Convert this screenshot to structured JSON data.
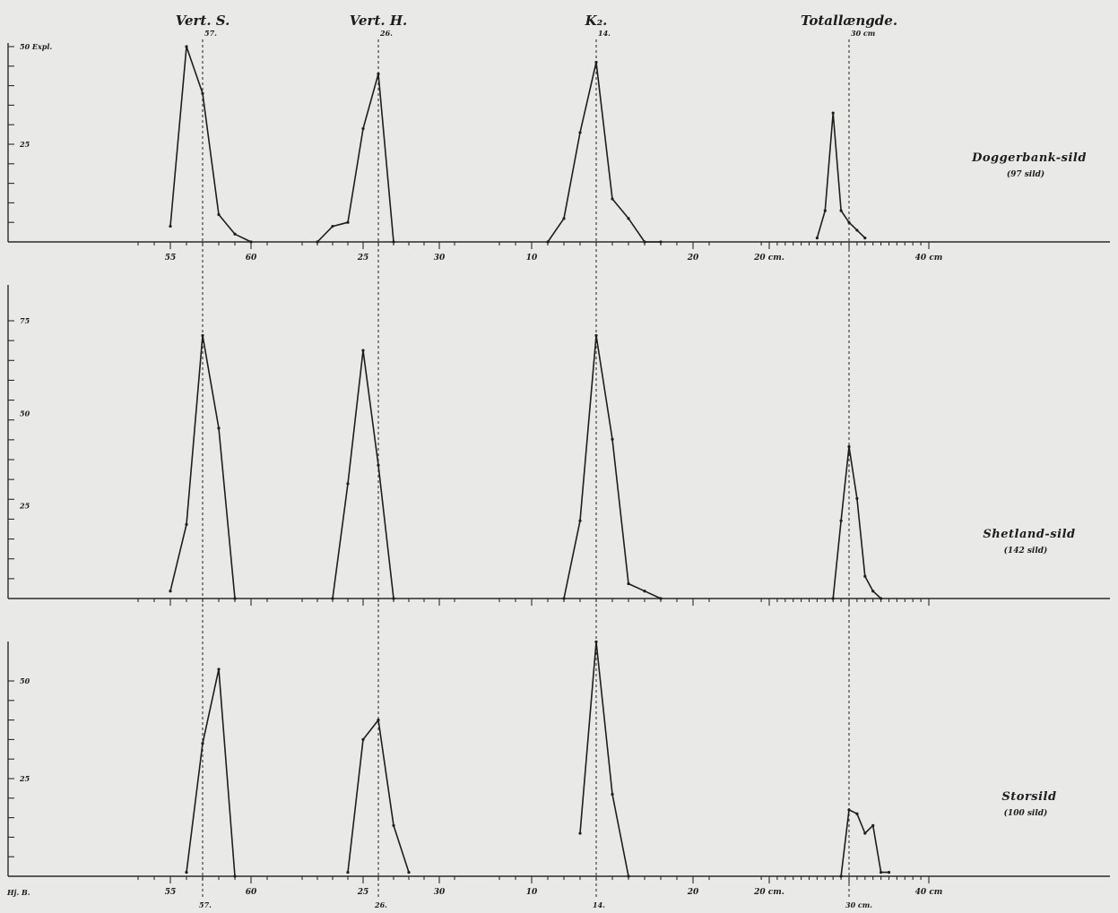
{
  "figure": {
    "headers": [
      {
        "id": "vert-s",
        "label": "Vert. S.",
        "mean_label": "57.",
        "bottom_mean_label": "57."
      },
      {
        "id": "vert-h",
        "label": "Vert. H.",
        "mean_label": "26.",
        "bottom_mean_label": "26."
      },
      {
        "id": "k2",
        "label": "K₂.",
        "mean_label": "14.",
        "bottom_mean_label": "14."
      },
      {
        "id": "total",
        "label": "Totallængde.",
        "mean_label": "30 cm",
        "bottom_mean_label": "30 cm."
      }
    ],
    "panels": [
      {
        "id": "doggerbank",
        "name": "Doggerbank-sild",
        "count_label": "(97 sild)",
        "y_top_label": "50 Expl.",
        "y_labels": [
          "25"
        ]
      },
      {
        "id": "shetland",
        "name": "Shetland-sild",
        "count_label": "(142 sild)",
        "y_top_label": "75",
        "y_labels": [
          "50",
          "25"
        ]
      },
      {
        "id": "storsild",
        "name": "Storsild",
        "count_label": "(100 sild)",
        "y_top_label": "50",
        "y_labels": [
          "25"
        ]
      }
    ],
    "signature": "Hj. B."
  },
  "chart_data": {
    "type": "line",
    "sections": [
      {
        "id": "vert-s",
        "title": "Vert. S.",
        "tick_labels": [
          "55",
          "60"
        ],
        "mean": 57
      },
      {
        "id": "vert-h",
        "title": "Vert. H.",
        "tick_labels": [
          "25",
          "30"
        ],
        "mean": 26
      },
      {
        "id": "k2",
        "title": "K₂.",
        "tick_labels": [
          "10",
          "20"
        ],
        "mean": 14
      },
      {
        "id": "total",
        "title": "Totallængde.",
        "tick_labels": [
          "20 cm.",
          "40 cm"
        ],
        "mean": 30
      }
    ],
    "panels": [
      {
        "name": "Doggerbank-sild",
        "count": 97,
        "ylim": [
          0,
          50
        ],
        "series": [
          {
            "section": "vert-s",
            "x": [
              55,
              56,
              57,
              58,
              59,
              60
            ],
            "y": [
              4,
              50,
              38,
              7,
              2,
              0
            ]
          },
          {
            "section": "vert-h",
            "x": [
              22,
              23,
              24,
              25,
              26,
              27
            ],
            "y": [
              0,
              4,
              5,
              29,
              43,
              0
            ]
          },
          {
            "section": "k2",
            "x": [
              11,
              12,
              13,
              14,
              15,
              16,
              17,
              18
            ],
            "y": [
              0,
              6,
              28,
              46,
              11,
              6,
              0,
              0
            ]
          },
          {
            "section": "total",
            "x": [
              26,
              27,
              28,
              29,
              30,
              31,
              32
            ],
            "y": [
              1,
              8,
              33,
              8,
              5,
              3,
              1
            ]
          }
        ]
      },
      {
        "name": "Shetland-sild",
        "count": 142,
        "ylim": [
          0,
          75
        ],
        "series": [
          {
            "section": "vert-s",
            "x": [
              55,
              56,
              57,
              58,
              59
            ],
            "y": [
              2,
              20,
              71,
              46,
              0
            ]
          },
          {
            "section": "vert-h",
            "x": [
              23,
              24,
              25,
              26,
              27
            ],
            "y": [
              0,
              31,
              67,
              36,
              0
            ]
          },
          {
            "section": "k2",
            "x": [
              12,
              13,
              14,
              15,
              16,
              17,
              18
            ],
            "y": [
              0,
              21,
              71,
              43,
              4,
              2,
              0
            ]
          },
          {
            "section": "total",
            "x": [
              28,
              29,
              30,
              31,
              32,
              33,
              34
            ],
            "y": [
              0,
              21,
              41,
              27,
              6,
              2,
              0
            ]
          }
        ]
      },
      {
        "name": "Storsild",
        "count": 100,
        "ylim": [
          0,
          50
        ],
        "series": [
          {
            "section": "vert-s",
            "x": [
              56,
              57,
              58,
              59
            ],
            "y": [
              1,
              34,
              53,
              0
            ]
          },
          {
            "section": "vert-h",
            "x": [
              24,
              25,
              26,
              27,
              28
            ],
            "y": [
              1,
              35,
              40,
              13,
              1
            ]
          },
          {
            "section": "k2",
            "x": [
              13,
              14,
              15,
              16
            ],
            "y": [
              11,
              60,
              21,
              0
            ]
          },
          {
            "section": "total",
            "x": [
              29,
              30,
              31,
              32,
              33,
              34,
              35
            ],
            "y": [
              0,
              17,
              16,
              11,
              13,
              1,
              1
            ]
          }
        ]
      }
    ]
  }
}
